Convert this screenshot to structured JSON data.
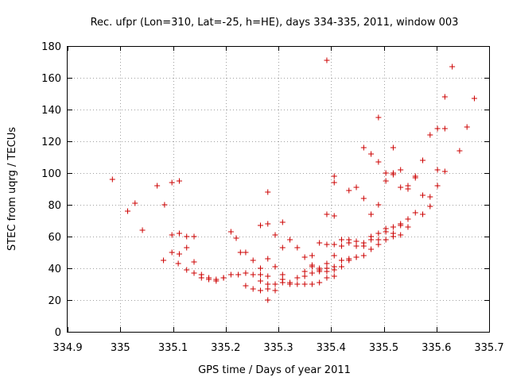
{
  "chart_data": {
    "type": "scatter",
    "title": "Rec. ufpr (Lon=310, Lat=-25, h=HE), days 334-335, 2011, window 003",
    "xlabel": "GPS time / Days of year 2011",
    "ylabel": "STEC from uqrg / TECUs",
    "xlim": [
      334.9,
      335.7
    ],
    "ylim": [
      0,
      180
    ],
    "xticks": [
      334.9,
      335,
      335.1,
      335.2,
      335.3,
      335.4,
      335.5,
      335.6,
      335.7
    ],
    "xtick_labels": [
      "334.9",
      "335",
      "335.1",
      "335.2",
      "335.3",
      "335.4",
      "335.5",
      "335.6",
      "335.7"
    ],
    "yticks": [
      0,
      20,
      40,
      60,
      80,
      100,
      120,
      140,
      160,
      180
    ],
    "ytick_labels": [
      "0",
      "20",
      "40",
      "60",
      "80",
      "100",
      "120",
      "140",
      "160",
      "180"
    ],
    "grid": true,
    "marker": "+",
    "color": "#cc0000",
    "series": [
      {
        "name": "STEC",
        "x": [
          334.985,
          335.014,
          335.028,
          335.042,
          335.07,
          335.084,
          335.098,
          335.112,
          335.082,
          335.098,
          335.112,
          335.126,
          335.14,
          335.098,
          335.112,
          335.126,
          335.14,
          335.11,
          335.126,
          335.14,
          335.154,
          335.168,
          335.182,
          335.196,
          335.154,
          335.168,
          335.182,
          335.196,
          335.21,
          335.224,
          335.238,
          335.252,
          335.266,
          335.28,
          335.21,
          335.22,
          335.228,
          335.238,
          335.252,
          335.266,
          335.28,
          335.294,
          335.308,
          335.238,
          335.252,
          335.266,
          335.28,
          335.294,
          335.308,
          335.322,
          335.336,
          335.35,
          335.364,
          335.378,
          335.392,
          335.406,
          335.266,
          335.28,
          335.294,
          335.308,
          335.322,
          335.336,
          335.35,
          335.364,
          335.378,
          335.392,
          335.406,
          335.42,
          335.434,
          335.448,
          335.266,
          335.28,
          335.294,
          335.308,
          335.322,
          335.336,
          335.35,
          335.364,
          335.378,
          335.392,
          335.406,
          335.42,
          335.434,
          335.448,
          335.462,
          335.476,
          335.49,
          335.504,
          335.518,
          335.532,
          335.546,
          335.56,
          335.574,
          335.588,
          335.602,
          335.616,
          335.28,
          335.294,
          335.308,
          335.35,
          335.364,
          335.378,
          335.392,
          335.406,
          335.42,
          335.434,
          335.448,
          335.462,
          335.476,
          335.49,
          335.504,
          335.518,
          335.532,
          335.546,
          335.364,
          335.378,
          335.392,
          335.406,
          335.42,
          335.434,
          335.448,
          335.462,
          335.476,
          335.49,
          335.504,
          335.518,
          335.532,
          335.392,
          335.406,
          335.434,
          335.448,
          335.462,
          335.476,
          335.49,
          335.504,
          335.518,
          335.532,
          335.546,
          335.56,
          335.574,
          335.588,
          335.602,
          335.616,
          335.63,
          335.644,
          335.658,
          335.672,
          335.392,
          335.406,
          335.462,
          335.476,
          335.49,
          335.504,
          335.518,
          335.532,
          335.546,
          335.56,
          335.574,
          335.588,
          335.602,
          335.616,
          335.28,
          335.406,
          335.49,
          335.518
        ],
        "y": [
          96,
          76,
          81,
          64,
          92,
          80,
          94,
          95,
          45,
          61,
          62,
          60,
          60,
          50,
          49,
          53,
          44,
          43,
          39,
          37,
          36,
          34,
          33,
          34,
          34,
          33,
          32,
          34,
          36,
          36,
          37,
          36,
          36,
          35,
          63,
          59,
          50,
          50,
          45,
          40,
          46,
          41,
          36,
          29,
          27,
          26,
          27,
          26,
          31,
          30,
          30,
          30,
          30,
          31,
          34,
          35,
          32,
          30,
          30,
          33,
          31,
          34,
          35,
          37,
          38,
          40,
          41,
          45,
          46,
          47,
          67,
          68,
          61,
          69,
          58,
          53,
          47,
          48,
          56,
          55,
          55,
          58,
          58,
          54,
          56,
          58,
          62,
          65,
          66,
          68,
          71,
          75,
          86,
          85,
          92,
          101,
          20,
          41,
          53,
          38,
          41,
          39,
          43,
          48,
          54,
          56,
          57,
          54,
          60,
          58,
          63,
          62,
          67,
          66,
          42,
          40,
          38,
          39,
          41,
          45,
          47,
          48,
          52,
          55,
          58,
          60,
          61,
          74,
          98,
          89,
          91,
          84,
          74,
          80,
          95,
          100,
          102,
          92,
          97,
          108,
          124,
          128,
          148,
          167,
          114,
          129,
          147,
          171,
          73,
          116,
          112,
          107,
          100,
          99,
          91,
          90,
          98,
          74,
          79,
          102,
          128,
          88,
          94,
          135,
          116
        ]
      }
    ]
  }
}
